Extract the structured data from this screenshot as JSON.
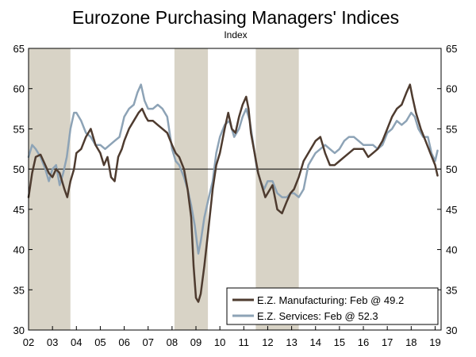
{
  "chart_data": {
    "type": "line",
    "title": "Eurozone Purchasing Managers' Indices",
    "subtitle": "Index",
    "ylim": [
      30,
      65
    ],
    "y_ticks": [
      30,
      35,
      40,
      45,
      50,
      55,
      60,
      65
    ],
    "x_range": [
      2002.0,
      2019.25
    ],
    "x_ticks": [
      {
        "label": "02",
        "year": 2002
      },
      {
        "label": "03",
        "year": 2003
      },
      {
        "label": "04",
        "year": 2004
      },
      {
        "label": "05",
        "year": 2005
      },
      {
        "label": "06",
        "year": 2006
      },
      {
        "label": "07",
        "year": 2007
      },
      {
        "label": "08",
        "year": 2008
      },
      {
        "label": "09",
        "year": 2009
      },
      {
        "label": "10",
        "year": 2010
      },
      {
        "label": "11",
        "year": 2011
      },
      {
        "label": "12",
        "year": 2012
      },
      {
        "label": "13",
        "year": 2013
      },
      {
        "label": "14",
        "year": 2014
      },
      {
        "label": "15",
        "year": 2015
      },
      {
        "label": "16",
        "year": 2016
      },
      {
        "label": "17",
        "year": 2017
      },
      {
        "label": "18",
        "year": 2018
      },
      {
        "label": "19",
        "year": 2019
      }
    ],
    "reference_line": 50,
    "shaded_periods": [
      {
        "start": 2002.0,
        "end": 2003.75
      },
      {
        "start": 2008.1,
        "end": 2009.5
      },
      {
        "start": 2011.5,
        "end": 2013.3
      }
    ],
    "legend": {
      "position": "bottom-right"
    },
    "series": [
      {
        "name": "E.Z. Manufacturing",
        "legend_label": "E.Z. Manufacturing: Feb @ 49.2",
        "color": "#4e3b2f",
        "x": [
          2002.0,
          2002.15,
          2002.3,
          2002.5,
          2002.7,
          2002.85,
          2003.0,
          2003.15,
          2003.3,
          2003.5,
          2003.62,
          2003.75,
          2003.9,
          2004.0,
          2004.2,
          2004.4,
          2004.6,
          2004.8,
          2005.0,
          2005.15,
          2005.3,
          2005.45,
          2005.6,
          2005.75,
          2005.9,
          2006.0,
          2006.2,
          2006.4,
          2006.6,
          2006.75,
          2006.9,
          2007.0,
          2007.2,
          2007.4,
          2007.6,
          2007.8,
          2008.0,
          2008.15,
          2008.3,
          2008.5,
          2008.65,
          2008.8,
          2008.9,
          2009.0,
          2009.1,
          2009.2,
          2009.35,
          2009.5,
          2009.7,
          2009.85,
          2010.0,
          2010.2,
          2010.35,
          2010.5,
          2010.65,
          2010.8,
          2010.95,
          2011.1,
          2011.2,
          2011.3,
          2011.45,
          2011.6,
          2011.75,
          2011.9,
          2012.0,
          2012.2,
          2012.4,
          2012.6,
          2012.8,
          2012.95,
          2013.1,
          2013.3,
          2013.5,
          2013.7,
          2013.9,
          2014.0,
          2014.2,
          2014.4,
          2014.6,
          2014.8,
          2015.0,
          2015.2,
          2015.4,
          2015.6,
          2015.8,
          2016.0,
          2016.2,
          2016.4,
          2016.6,
          2016.8,
          2017.0,
          2017.2,
          2017.4,
          2017.6,
          2017.8,
          2017.95,
          2018.05,
          2018.2,
          2018.4,
          2018.6,
          2018.8,
          2019.0,
          2019.1
        ],
        "y": [
          46.5,
          49.5,
          51.5,
          51.8,
          50.5,
          49.5,
          49.0,
          50.0,
          49.5,
          47.5,
          46.5,
          48.5,
          50.0,
          52.0,
          52.5,
          54.0,
          55.0,
          53.0,
          52.0,
          50.5,
          51.5,
          49.0,
          48.5,
          51.5,
          52.5,
          53.5,
          55.0,
          56.0,
          57.0,
          57.5,
          56.5,
          56.0,
          56.0,
          55.5,
          55.0,
          54.5,
          53.0,
          52.0,
          51.5,
          50.0,
          47.5,
          44.0,
          38.0,
          34.0,
          33.5,
          34.5,
          38.0,
          42.0,
          47.5,
          50.5,
          52.0,
          55.0,
          57.0,
          55.0,
          54.5,
          56.5,
          58.0,
          59.0,
          57.5,
          54.5,
          52.0,
          49.5,
          48.0,
          46.5,
          47.0,
          48.0,
          45.0,
          44.5,
          46.0,
          47.0,
          47.5,
          49.0,
          51.0,
          52.0,
          53.0,
          53.5,
          54.0,
          52.0,
          50.5,
          50.5,
          51.0,
          51.5,
          52.0,
          52.5,
          52.5,
          52.5,
          51.5,
          52.0,
          52.5,
          53.5,
          55.0,
          56.5,
          57.5,
          58.0,
          59.5,
          60.5,
          59.0,
          57.0,
          55.0,
          53.5,
          52.0,
          50.5,
          49.2
        ]
      },
      {
        "name": "E.Z. Services",
        "legend_label": "E.Z. Services: Feb @ 52.3",
        "color": "#8da3b6",
        "x": [
          2002.0,
          2002.15,
          2002.3,
          2002.5,
          2002.7,
          2002.85,
          2003.0,
          2003.15,
          2003.3,
          2003.45,
          2003.6,
          2003.75,
          2003.9,
          2004.0,
          2004.2,
          2004.4,
          2004.6,
          2004.8,
          2005.0,
          2005.2,
          2005.4,
          2005.6,
          2005.8,
          2006.0,
          2006.2,
          2006.4,
          2006.55,
          2006.7,
          2006.85,
          2007.0,
          2007.2,
          2007.4,
          2007.6,
          2007.8,
          2008.0,
          2008.15,
          2008.3,
          2008.5,
          2008.65,
          2008.8,
          2008.95,
          2009.1,
          2009.2,
          2009.35,
          2009.5,
          2009.7,
          2009.85,
          2010.0,
          2010.2,
          2010.4,
          2010.6,
          2010.8,
          2010.95,
          2011.1,
          2011.25,
          2011.4,
          2011.55,
          2011.7,
          2011.85,
          2012.0,
          2012.2,
          2012.4,
          2012.6,
          2012.8,
          2012.95,
          2013.1,
          2013.3,
          2013.5,
          2013.7,
          2013.9,
          2014.0,
          2014.2,
          2014.4,
          2014.6,
          2014.8,
          2015.0,
          2015.2,
          2015.4,
          2015.6,
          2015.8,
          2016.0,
          2016.2,
          2016.4,
          2016.6,
          2016.8,
          2017.0,
          2017.2,
          2017.4,
          2017.6,
          2017.8,
          2018.0,
          2018.15,
          2018.3,
          2018.5,
          2018.7,
          2018.85,
          2019.0,
          2019.1
        ],
        "y": [
          51.5,
          53.0,
          52.5,
          51.5,
          50.0,
          48.5,
          50.0,
          50.5,
          48.0,
          49.5,
          51.5,
          55.0,
          57.0,
          57.0,
          56.0,
          54.5,
          54.0,
          53.0,
          53.0,
          52.5,
          53.0,
          53.5,
          54.0,
          56.5,
          57.5,
          58.0,
          59.5,
          60.5,
          58.5,
          57.5,
          57.5,
          58.0,
          57.5,
          56.5,
          52.5,
          51.0,
          50.5,
          49.0,
          47.5,
          45.5,
          43.0,
          39.5,
          41.0,
          44.0,
          46.0,
          48.5,
          52.0,
          54.0,
          55.5,
          56.0,
          54.0,
          55.0,
          56.5,
          57.5,
          56.0,
          53.0,
          50.0,
          48.5,
          47.5,
          48.5,
          48.5,
          47.0,
          46.5,
          46.5,
          47.0,
          47.0,
          46.5,
          47.5,
          50.5,
          51.5,
          52.0,
          52.5,
          53.0,
          52.5,
          52.0,
          52.5,
          53.5,
          54.0,
          54.0,
          53.5,
          53.0,
          53.0,
          53.0,
          52.5,
          53.0,
          54.5,
          55.0,
          56.0,
          55.5,
          56.0,
          57.0,
          56.5,
          55.0,
          54.0,
          54.0,
          52.0,
          51.0,
          52.3
        ]
      }
    ]
  }
}
